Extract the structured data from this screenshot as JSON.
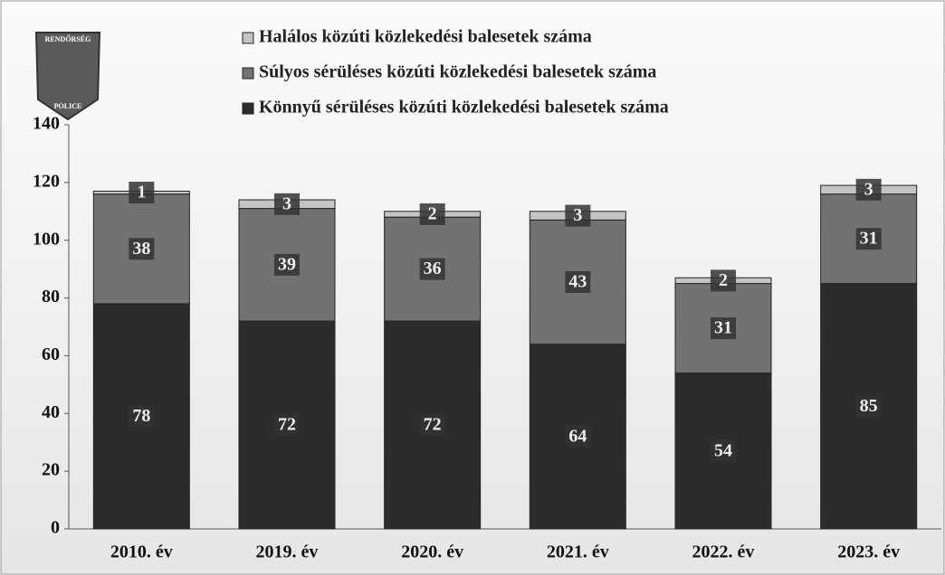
{
  "logo": {
    "top": "RENDŐRSÉG",
    "bottom": "POLICE"
  },
  "chart_data": {
    "type": "stacked_bar",
    "categories": [
      "2010. év",
      "2019. év",
      "2020. év",
      "2021. év",
      "2022. év",
      "2023. év"
    ],
    "series": [
      {
        "name": "Halálos közúti közlekedési balesetek száma",
        "color": "#c4c4c4",
        "values": [
          1,
          3,
          2,
          3,
          2,
          3
        ]
      },
      {
        "name": "Súlyos sérüléses közúti közlekedési balesetek száma",
        "color": "#727272",
        "values": [
          38,
          39,
          36,
          43,
          31,
          31
        ]
      },
      {
        "name": "Könnyű sérüléses közúti közlekedési balesetek száma",
        "color": "#2c2c2c",
        "values": [
          78,
          72,
          72,
          64,
          54,
          85
        ]
      }
    ],
    "ylim": [
      0,
      140
    ],
    "yticks": [
      0,
      20,
      40,
      60,
      80,
      100,
      120,
      140
    ]
  }
}
